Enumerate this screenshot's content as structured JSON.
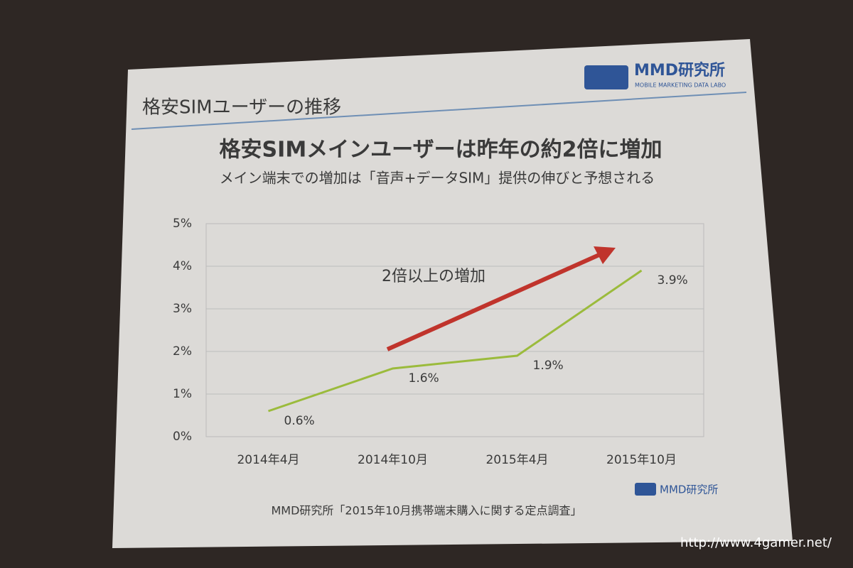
{
  "header": {
    "title": "格安SIMユーザーの推移",
    "logo": "MMD研究所",
    "logo_sub": "MOBILE MARKETING DATA LABO"
  },
  "chart_data": {
    "type": "line",
    "title": "格安SIMメインユーザーは昨年の約2倍に増加",
    "subtitle": "メイン端末での増加は「音声+データSIM」提供の伸びと予想される",
    "annotation": "2倍以上の増加",
    "categories": [
      "2014年4月",
      "2014年10月",
      "2015年4月",
      "2015年10月"
    ],
    "values": [
      0.6,
      1.6,
      1.9,
      3.9
    ],
    "value_labels": [
      "0.6%",
      "1.6%",
      "1.9%",
      "3.9%"
    ],
    "color": "#9bbb3c",
    "ylim": [
      0,
      5
    ],
    "yticks": [
      {
        "value": 0,
        "label": "0%"
      },
      {
        "value": 1,
        "label": "1%"
      },
      {
        "value": 2,
        "label": "2%"
      },
      {
        "value": 3,
        "label": "3%"
      },
      {
        "value": 4,
        "label": "4%"
      },
      {
        "value": 5,
        "label": "5%"
      }
    ],
    "grid": true
  },
  "footer": {
    "logo": "MMD研究所",
    "source": "MMD研究所「2015年10月携帯端末購入に関する定点調査」"
  },
  "watermark": "http://www.4gamer.net/"
}
